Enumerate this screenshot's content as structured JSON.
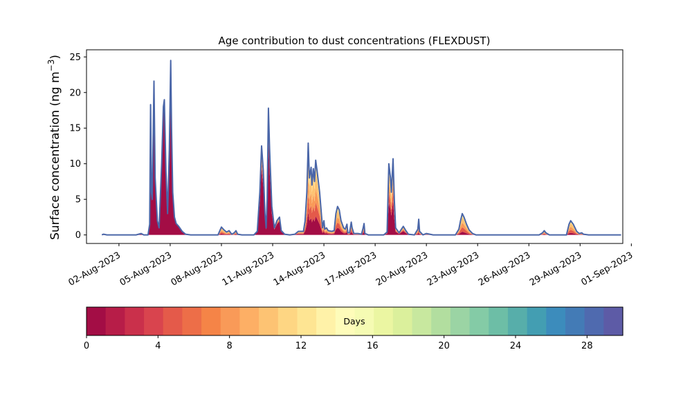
{
  "chart_data": {
    "type": "area",
    "title": "Age contribution to dust concentrations (FLEXDUST)",
    "ylabel": "Surface concentration (ng m⁻³)",
    "ylabel_parts": {
      "main": "Surface concentration (ng m",
      "sup": "−3",
      "close": ")"
    },
    "xlabel": "",
    "ylim": [
      -1.2,
      26
    ],
    "yticks": [
      0,
      5,
      10,
      15,
      20,
      25
    ],
    "xlim_days": [
      -0.9,
      30.5
    ],
    "xticks": [
      {
        "day": 1,
        "label": "02-Aug-2023"
      },
      {
        "day": 4,
        "label": "05-Aug-2023"
      },
      {
        "day": 7,
        "label": "08-Aug-2023"
      },
      {
        "day": 10,
        "label": "11-Aug-2023"
      },
      {
        "day": 13,
        "label": "14-Aug-2023"
      },
      {
        "day": 16,
        "label": "17-Aug-2023"
      },
      {
        "day": 19,
        "label": "20-Aug-2023"
      },
      {
        "day": 22,
        "label": "23-Aug-2023"
      },
      {
        "day": 25,
        "label": "26-Aug-2023"
      },
      {
        "day": 28,
        "label": "29-Aug-2023"
      },
      {
        "day": 31,
        "label": "01-Sep-2023"
      }
    ],
    "total_line_color": "#4a66a8",
    "total_series": [
      [
        0.0,
        0
      ],
      [
        0.1,
        0.1
      ],
      [
        0.3,
        0
      ],
      [
        1.2,
        0
      ],
      [
        2.0,
        0
      ],
      [
        2.3,
        0.2
      ],
      [
        2.45,
        0
      ],
      [
        2.7,
        0
      ],
      [
        2.8,
        1.5
      ],
      [
        2.85,
        18.3
      ],
      [
        2.9,
        6
      ],
      [
        2.95,
        5
      ],
      [
        3.05,
        21.6
      ],
      [
        3.12,
        8
      ],
      [
        3.25,
        2
      ],
      [
        3.35,
        1
      ],
      [
        3.5,
        10
      ],
      [
        3.6,
        18
      ],
      [
        3.66,
        19
      ],
      [
        3.75,
        9
      ],
      [
        3.85,
        3
      ],
      [
        3.95,
        12
      ],
      [
        4.03,
        24.5
      ],
      [
        4.08,
        15
      ],
      [
        4.15,
        6
      ],
      [
        4.25,
        2.5
      ],
      [
        4.35,
        1.6
      ],
      [
        4.5,
        1.2
      ],
      [
        4.7,
        0.5
      ],
      [
        4.9,
        0.1
      ],
      [
        5.2,
        0
      ],
      [
        6.8,
        0
      ],
      [
        7.0,
        1.1
      ],
      [
        7.15,
        0.7
      ],
      [
        7.3,
        0.4
      ],
      [
        7.45,
        0.6
      ],
      [
        7.6,
        0.1
      ],
      [
        7.75,
        0.3
      ],
      [
        7.85,
        0.6
      ],
      [
        7.95,
        0.1
      ],
      [
        8.2,
        0
      ],
      [
        8.9,
        0
      ],
      [
        9.1,
        0.5
      ],
      [
        9.25,
        6
      ],
      [
        9.35,
        12.5
      ],
      [
        9.45,
        9
      ],
      [
        9.55,
        3
      ],
      [
        9.62,
        1
      ],
      [
        9.68,
        5
      ],
      [
        9.75,
        17.8
      ],
      [
        9.82,
        12
      ],
      [
        9.95,
        4
      ],
      [
        10.1,
        1
      ],
      [
        10.25,
        2
      ],
      [
        10.4,
        2.5
      ],
      [
        10.5,
        0.6
      ],
      [
        10.7,
        0.1
      ],
      [
        11.0,
        0
      ],
      [
        11.3,
        0.1
      ],
      [
        11.5,
        0.5
      ],
      [
        11.8,
        0.5
      ],
      [
        11.9,
        2
      ],
      [
        12.0,
        6
      ],
      [
        12.08,
        12.9
      ],
      [
        12.15,
        8
      ],
      [
        12.25,
        9.5
      ],
      [
        12.3,
        7
      ],
      [
        12.38,
        9.3
      ],
      [
        12.45,
        7.5
      ],
      [
        12.52,
        10.5
      ],
      [
        12.6,
        9
      ],
      [
        12.75,
        6
      ],
      [
        12.85,
        3
      ],
      [
        12.92,
        1
      ],
      [
        13.0,
        2
      ],
      [
        13.05,
        0.8
      ],
      [
        13.15,
        1
      ],
      [
        13.25,
        0.6
      ],
      [
        13.45,
        0.5
      ],
      [
        13.6,
        0.6
      ],
      [
        13.7,
        3
      ],
      [
        13.8,
        4
      ],
      [
        13.9,
        3.5
      ],
      [
        14.0,
        2
      ],
      [
        14.15,
        1
      ],
      [
        14.25,
        0.8
      ],
      [
        14.35,
        1.5
      ],
      [
        14.4,
        0.3
      ],
      [
        14.5,
        0.3
      ],
      [
        14.6,
        1.8
      ],
      [
        14.65,
        1
      ],
      [
        14.75,
        0.2
      ],
      [
        15.0,
        0.2
      ],
      [
        15.2,
        0.1
      ],
      [
        15.3,
        1
      ],
      [
        15.35,
        1.6
      ],
      [
        15.4,
        0.2
      ],
      [
        15.6,
        0
      ],
      [
        16.5,
        0
      ],
      [
        16.7,
        0.4
      ],
      [
        16.8,
        10
      ],
      [
        16.9,
        8
      ],
      [
        16.95,
        6
      ],
      [
        17.05,
        10.7
      ],
      [
        17.12,
        5
      ],
      [
        17.2,
        1
      ],
      [
        17.4,
        0.3
      ],
      [
        17.65,
        1.2
      ],
      [
        17.8,
        0.6
      ],
      [
        17.95,
        0.1
      ],
      [
        18.3,
        0
      ],
      [
        18.5,
        0.8
      ],
      [
        18.55,
        2.2
      ],
      [
        18.6,
        0.5
      ],
      [
        18.8,
        0
      ],
      [
        19.0,
        0.2
      ],
      [
        19.4,
        0
      ],
      [
        20.7,
        0
      ],
      [
        20.9,
        0.8
      ],
      [
        21.0,
        2
      ],
      [
        21.1,
        3
      ],
      [
        21.2,
        2.5
      ],
      [
        21.35,
        1.5
      ],
      [
        21.5,
        0.7
      ],
      [
        21.7,
        0.2
      ],
      [
        21.9,
        0
      ],
      [
        25.6,
        0
      ],
      [
        25.8,
        0.3
      ],
      [
        25.9,
        0.6
      ],
      [
        26.0,
        0.3
      ],
      [
        26.2,
        0
      ],
      [
        27.2,
        0
      ],
      [
        27.35,
        1.5
      ],
      [
        27.45,
        2
      ],
      [
        27.6,
        1.5
      ],
      [
        27.8,
        0.5
      ],
      [
        27.95,
        0.2
      ],
      [
        28.1,
        0.3
      ],
      [
        28.2,
        0.1
      ],
      [
        28.5,
        0
      ],
      [
        30.4,
        0
      ]
    ],
    "age_fraction_segments": [
      {
        "from": 0,
        "to": 2.6,
        "fresh": 0.5
      },
      {
        "from": 2.6,
        "to": 5.0,
        "fresh": 0.96
      },
      {
        "from": 5.0,
        "to": 9.0,
        "fresh": 0.15
      },
      {
        "from": 9.0,
        "to": 11.5,
        "fresh": 0.75
      },
      {
        "from": 11.5,
        "to": 15.5,
        "fresh": 0.25
      },
      {
        "from": 15.5,
        "to": 16.5,
        "fresh": 0.3
      },
      {
        "from": 16.5,
        "to": 18.3,
        "fresh": 0.45
      },
      {
        "from": 18.3,
        "to": 30.4,
        "fresh": 0.15
      }
    ],
    "colorbar": {
      "label": "Days",
      "ticks": [
        0,
        4,
        8,
        12,
        16,
        20,
        24,
        28
      ],
      "range": [
        0,
        30
      ],
      "colors": [
        "#a30d45",
        "#b71d48",
        "#ca304b",
        "#d9444e",
        "#e45a4a",
        "#ed6e48",
        "#f58447",
        "#f99a58",
        "#fdaf65",
        "#fdc373",
        "#fed683",
        "#fee593",
        "#fff2a8",
        "#fefcba",
        "#f5fbb3",
        "#ebf6a2",
        "#dbf09c",
        "#c8e89f",
        "#b2de9f",
        "#9bd4a4",
        "#84cba6",
        "#6dbea6",
        "#57aeaa",
        "#439eb2",
        "#3c8cbc",
        "#437bb6",
        "#4f6aaf",
        "#5d5ba6"
      ]
    }
  }
}
